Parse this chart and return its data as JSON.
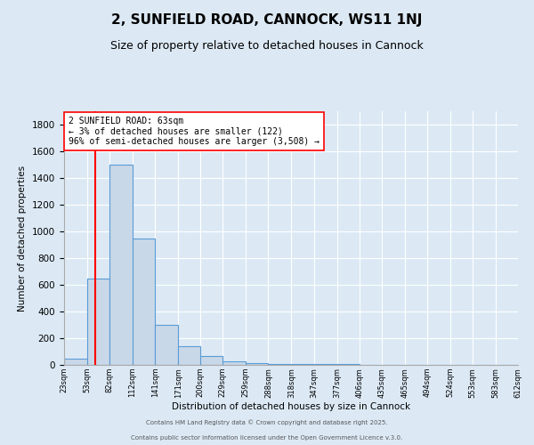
{
  "title": "2, SUNFIELD ROAD, CANNOCK, WS11 1NJ",
  "subtitle": "Size of property relative to detached houses in Cannock",
  "xlabel": "Distribution of detached houses by size in Cannock",
  "ylabel": "Number of detached properties",
  "bin_edges": [
    23,
    53,
    82,
    112,
    141,
    171,
    200,
    229,
    259,
    288,
    318,
    347,
    377,
    406,
    435,
    465,
    494,
    524,
    553,
    583,
    612
  ],
  "bar_heights": [
    50,
    650,
    1500,
    950,
    300,
    140,
    70,
    25,
    15,
    10,
    5,
    5,
    5,
    0,
    0,
    0,
    0,
    0,
    0,
    0
  ],
  "bar_color": "#c8d8e8",
  "bar_edge_color": "#5b9bd5",
  "red_line_x": 63,
  "ylim": [
    0,
    1900
  ],
  "yticks": [
    0,
    200,
    400,
    600,
    800,
    1000,
    1200,
    1400,
    1600,
    1800
  ],
  "annotation_text": "2 SUNFIELD ROAD: 63sqm\n← 3% of detached houses are smaller (122)\n96% of semi-detached houses are larger (3,508) →",
  "background_color": "#dce9f5",
  "plot_bg_color": "#dce9f5",
  "footer1": "Contains HM Land Registry data © Crown copyright and database right 2025.",
  "footer2": "Contains public sector information licensed under the Open Government Licence v.3.0.",
  "title_fontsize": 11,
  "subtitle_fontsize": 9
}
